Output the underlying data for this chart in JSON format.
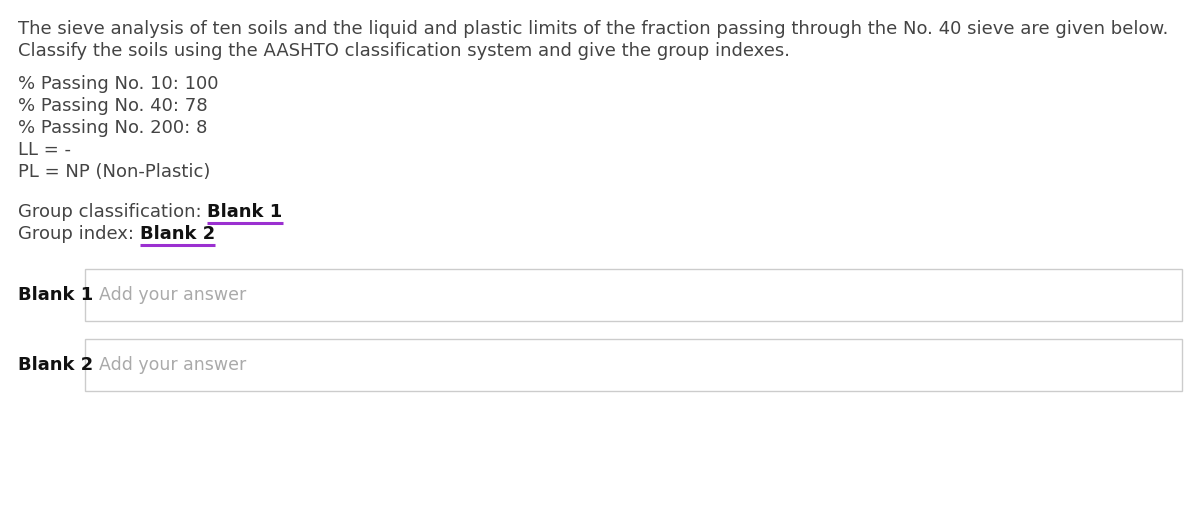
{
  "background_color": "#ffffff",
  "intro_text_line1": "The sieve analysis of ten soils and the liquid and plastic limits of the fraction passing through the No. 40 sieve are given below.",
  "intro_text_line2": "Classify the soils using the AASHTO classification system and give the group indexes.",
  "data_lines": [
    "% Passing No. 10: 100",
    "% Passing No. 40: 78",
    "% Passing No. 200: 8",
    "LL = -",
    "PL = NP (Non-Plastic)"
  ],
  "group_classification_label": "Group classification: ",
  "group_classification_blank": "Blank 1",
  "group_index_label": "Group index: ",
  "group_index_blank": "Blank 2",
  "blank1_label": "Blank 1",
  "blank2_label": "Blank 2",
  "placeholder_text": "Add your answer",
  "text_color": "#444444",
  "bold_color": "#111111",
  "underline_color": "#9b30d0",
  "placeholder_color": "#aaaaaa",
  "box_border_color": "#cccccc",
  "box_bg_color": "#ffffff",
  "main_font_size": 13.0,
  "data_font_size": 13.0,
  "blank_label_font_size": 13.0,
  "placeholder_font_size": 12.5,
  "fig_width": 12.0,
  "fig_height": 5.05,
  "dpi": 100
}
